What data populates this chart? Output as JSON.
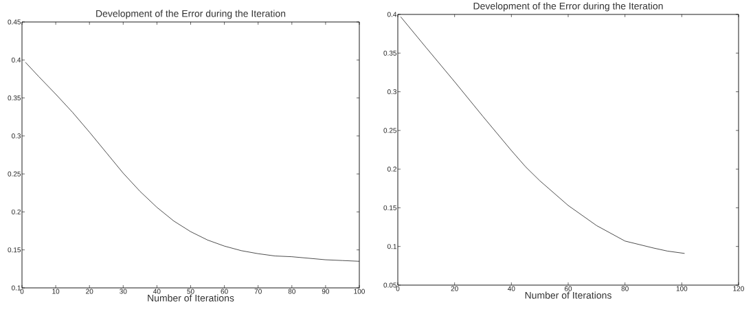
{
  "chart_data": [
    {
      "type": "line",
      "title": "Development of the Error during the Iteration",
      "xlabel": "Number of Iterations",
      "color": "#000000",
      "x": [
        1,
        5,
        10,
        15,
        20,
        25,
        30,
        35,
        40,
        45,
        50,
        55,
        60,
        65,
        70,
        75,
        80,
        85,
        90,
        95,
        100
      ],
      "values": [
        0.397,
        0.378,
        0.355,
        0.331,
        0.305,
        0.278,
        0.251,
        0.227,
        0.206,
        0.188,
        0.174,
        0.163,
        0.155,
        0.149,
        0.145,
        0.142,
        0.141,
        0.139,
        0.137,
        0.136,
        0.135
      ],
      "xlim": [
        0,
        100
      ],
      "ylim": [
        0.1,
        0.45
      ],
      "xticks": [
        0,
        10,
        20,
        30,
        40,
        50,
        60,
        70,
        80,
        90,
        100
      ],
      "yticks": [
        0.1,
        0.15,
        0.2,
        0.25,
        0.3,
        0.35,
        0.4,
        0.45
      ]
    },
    {
      "type": "line",
      "title": "Development of the Error during the Iteration",
      "xlabel": "Number of Iterations",
      "color": "#000000",
      "x": [
        1,
        10,
        20,
        30,
        40,
        45,
        50,
        60,
        70,
        80,
        90,
        95,
        101
      ],
      "values": [
        0.397,
        0.357,
        0.313,
        0.268,
        0.224,
        0.203,
        0.185,
        0.153,
        0.127,
        0.107,
        0.098,
        0.094,
        0.091
      ],
      "xlim": [
        0,
        120
      ],
      "ylim": [
        0.05,
        0.4
      ],
      "xticks": [
        0,
        20,
        40,
        60,
        80,
        100,
        120
      ],
      "yticks": [
        0.05,
        0.1,
        0.15,
        0.2,
        0.25,
        0.3,
        0.35,
        0.4
      ]
    }
  ]
}
